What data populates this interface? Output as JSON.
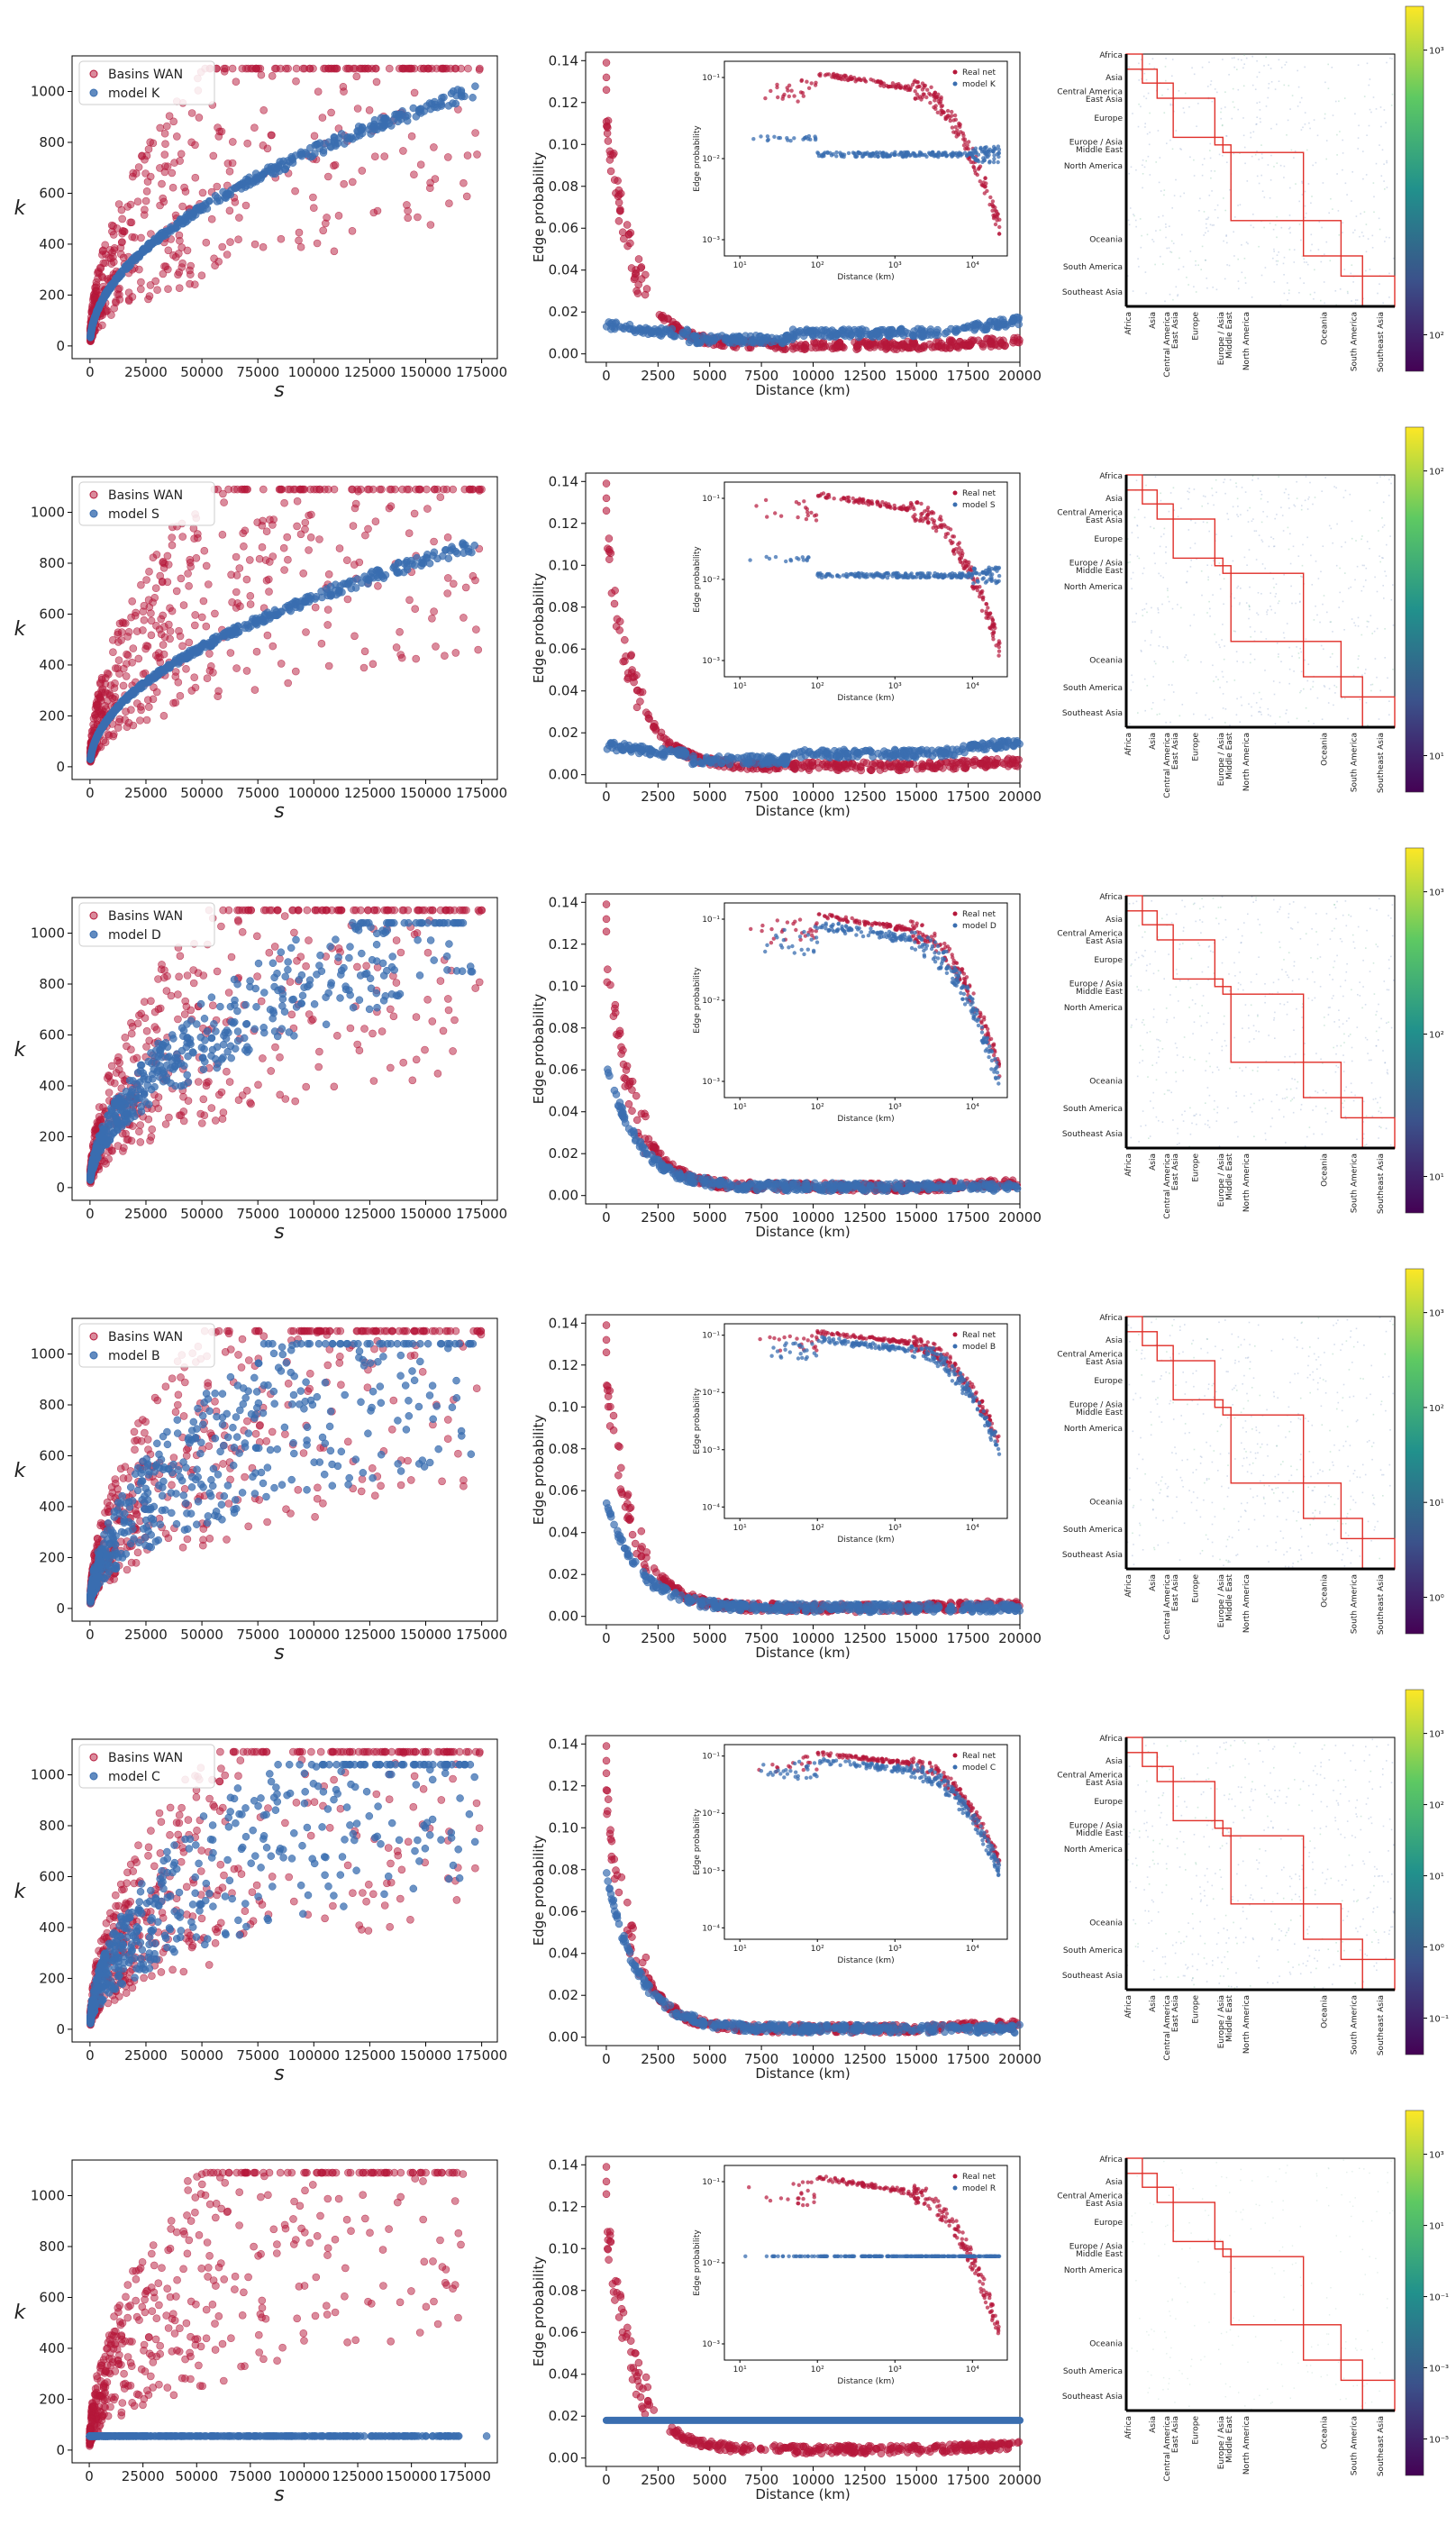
{
  "colors": {
    "real": "#b5173a",
    "model": "#3a6eb0",
    "heatmap_box": "#e0302a"
  },
  "common": {
    "scatter_xlabel": "s",
    "scatter_ylabel": "k",
    "scatter_legend_real": "Basins WAN",
    "scatter_xticks": [
      "0",
      "25000",
      "50000",
      "75000",
      "100000",
      "125000",
      "150000",
      "175000"
    ],
    "scatter_yticks": [
      "0",
      "200",
      "400",
      "600",
      "800",
      "1000"
    ],
    "dist_xlabel": "Distance (km)",
    "dist_ylabel": "Edge probability",
    "dist_xticks": [
      "0",
      "2500",
      "5000",
      "7500",
      "10000",
      "12500",
      "15000",
      "17500",
      "20000"
    ],
    "dist_yticks": [
      "0.00",
      "0.02",
      "0.04",
      "0.06",
      "0.08",
      "0.10",
      "0.12",
      "0.14"
    ],
    "inset_xlabel": "Distance (km)",
    "inset_ylabel": "Edge probability",
    "inset_legend_real": "Real net",
    "regions": [
      "Africa",
      "Asia",
      "Central America",
      "East Asia",
      "Europe",
      "Europe / Asia",
      "Middle East",
      "North America",
      "Oceania",
      "South America",
      "Southeast Asia"
    ]
  },
  "chart_data": [
    {
      "row": 1,
      "model": "K",
      "scatter_legend_model": "model K",
      "inset_legend_model": "model K",
      "type": "scatter",
      "xlim": [
        -8000,
        182000
      ],
      "ylim": [
        -50,
        1140
      ],
      "dist_model_mode": "flat",
      "dist_model_level": 0.01,
      "inset_yticks": [
        "10⁻¹",
        "10⁻²",
        "10⁻³"
      ],
      "inset_xticks": [
        "10¹",
        "10²",
        "10³",
        "10⁴"
      ],
      "colorbar_ticks": [
        "10³",
        "10²"
      ]
    },
    {
      "row": 2,
      "model": "S",
      "scatter_legend_model": "model S",
      "inset_legend_model": "model S",
      "type": "scatter",
      "xlim": [
        -8000,
        182000
      ],
      "ylim": [
        -50,
        1140
      ],
      "dist_model_mode": "flat",
      "dist_model_level": 0.01,
      "inset_yticks": [
        "10⁻¹",
        "10⁻²",
        "10⁻³"
      ],
      "inset_xticks": [
        "10¹",
        "10²",
        "10³",
        "10⁴"
      ],
      "colorbar_ticks": [
        "10²",
        "10¹"
      ]
    },
    {
      "row": 3,
      "model": "D",
      "scatter_legend_model": "model D",
      "inset_legend_model": "model D",
      "type": "scatter",
      "xlim": [
        -8000,
        182000
      ],
      "ylim": [
        -50,
        1140
      ],
      "dist_model_mode": "follow",
      "dist_model_peak": 0.06,
      "inset_yticks": [
        "10⁻¹",
        "10⁻²",
        "10⁻³"
      ],
      "inset_xticks": [
        "10¹",
        "10²",
        "10³",
        "10⁴"
      ],
      "colorbar_ticks": [
        "10³",
        "10²",
        "10¹"
      ]
    },
    {
      "row": 4,
      "model": "B",
      "scatter_legend_model": "model B",
      "inset_legend_model": "model B",
      "type": "scatter",
      "xlim": [
        -8000,
        182000
      ],
      "ylim": [
        -50,
        1140
      ],
      "dist_model_mode": "follow",
      "dist_model_peak": 0.052,
      "inset_yticks": [
        "10⁻¹",
        "10⁻²",
        "10⁻³",
        "10⁻⁴"
      ],
      "inset_xticks": [
        "10¹",
        "10²",
        "10³",
        "10⁴"
      ],
      "colorbar_ticks": [
        "10³",
        "10²",
        "10¹",
        "10⁰"
      ]
    },
    {
      "row": 5,
      "model": "C",
      "scatter_legend_model": "model C",
      "inset_legend_model": "model C",
      "type": "scatter",
      "xlim": [
        -8000,
        182000
      ],
      "ylim": [
        -50,
        1140
      ],
      "dist_model_mode": "follow",
      "dist_model_peak": 0.075,
      "inset_yticks": [
        "10⁻¹",
        "10⁻²",
        "10⁻³",
        "10⁻⁴"
      ],
      "inset_xticks": [
        "10¹",
        "10²",
        "10³",
        "10⁴"
      ],
      "colorbar_ticks": [
        "10³",
        "10²",
        "10¹",
        "10⁰",
        "10⁻¹"
      ]
    },
    {
      "row": 6,
      "model": "R",
      "scatter_legend_model": "",
      "inset_legend_model": "model R",
      "type": "scatter",
      "xlim": [
        -8000,
        190000
      ],
      "ylim": [
        -50,
        1140
      ],
      "dist_model_mode": "const",
      "dist_model_level": 0.018,
      "inset_yticks": [
        "10⁻¹",
        "10⁻²",
        "10⁻³"
      ],
      "inset_xticks": [
        "10¹",
        "10²",
        "10³",
        "10⁴"
      ],
      "colorbar_ticks": [
        "10³",
        "10¹",
        "10⁻¹",
        "10⁻³",
        "10⁻⁵"
      ]
    }
  ]
}
